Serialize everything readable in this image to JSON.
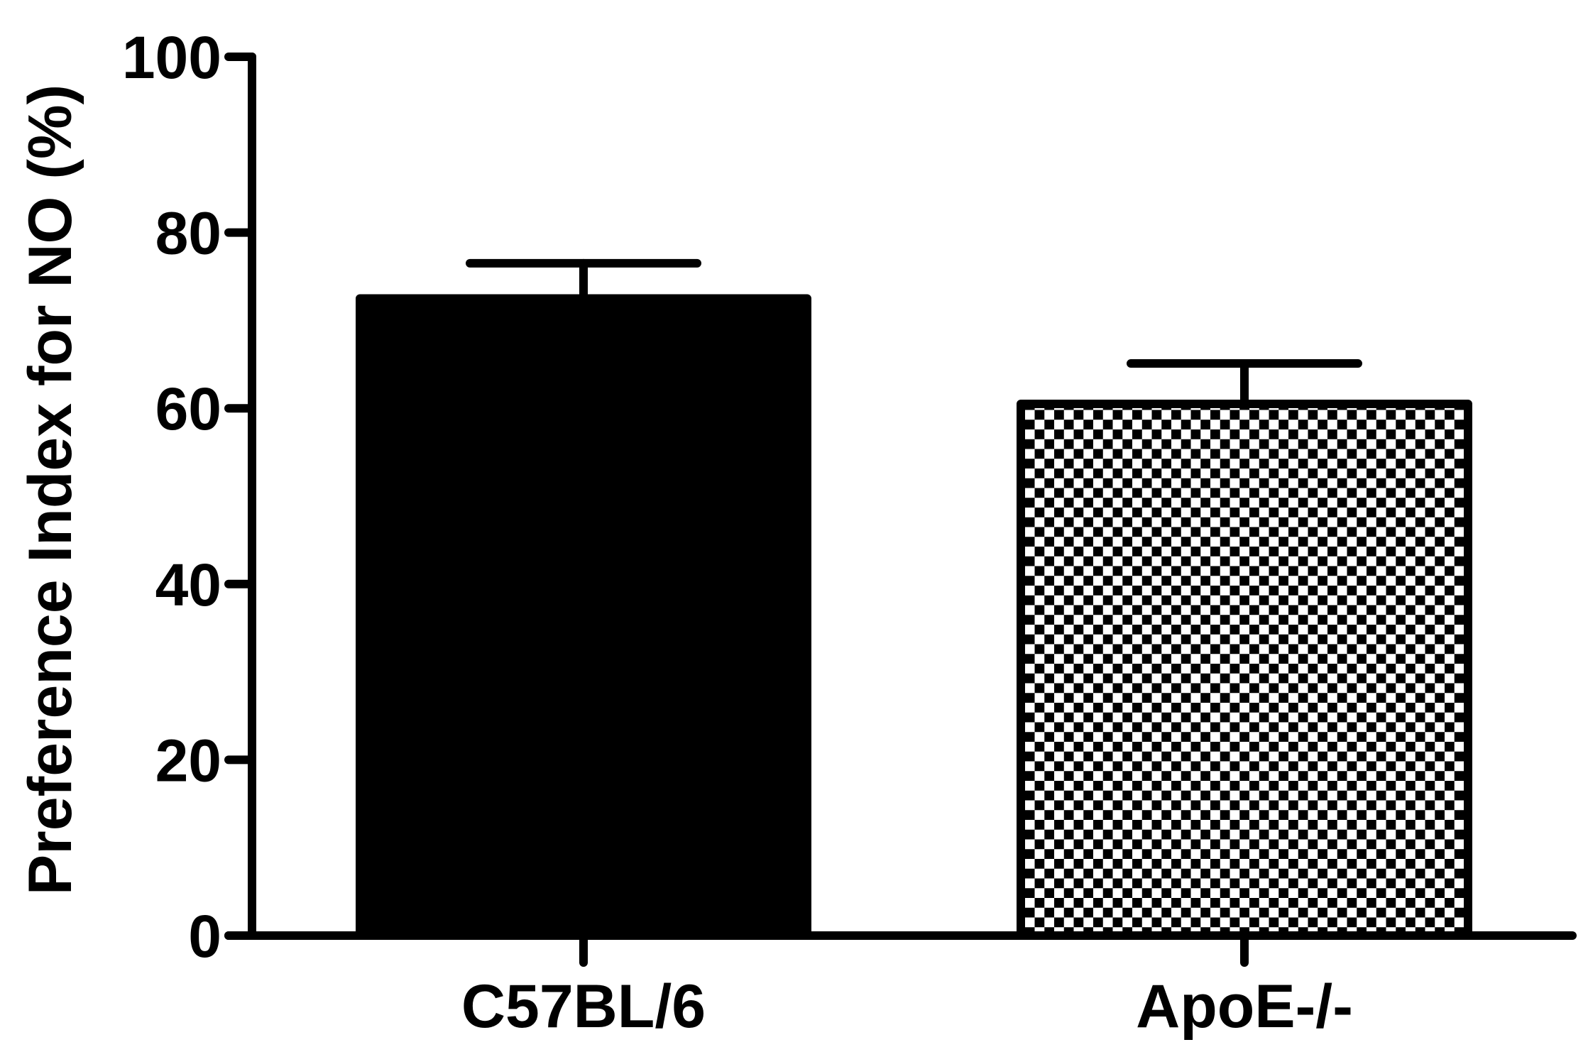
{
  "chart_data": {
    "type": "bar",
    "categories": [
      "C57BL/6",
      "ApoE-/-"
    ],
    "values": [
      72.5,
      60.5
    ],
    "errors": [
      4.0,
      4.6
    ],
    "ylabel": "Preference Index for NO (%)",
    "xlabel": "",
    "ylim": [
      0,
      100
    ],
    "yticks": [
      "0",
      "20",
      "40",
      "60",
      "80",
      "100"
    ],
    "bar_fills": [
      "solid-black",
      "checkerboard"
    ],
    "grid": false,
    "legend": "none"
  }
}
